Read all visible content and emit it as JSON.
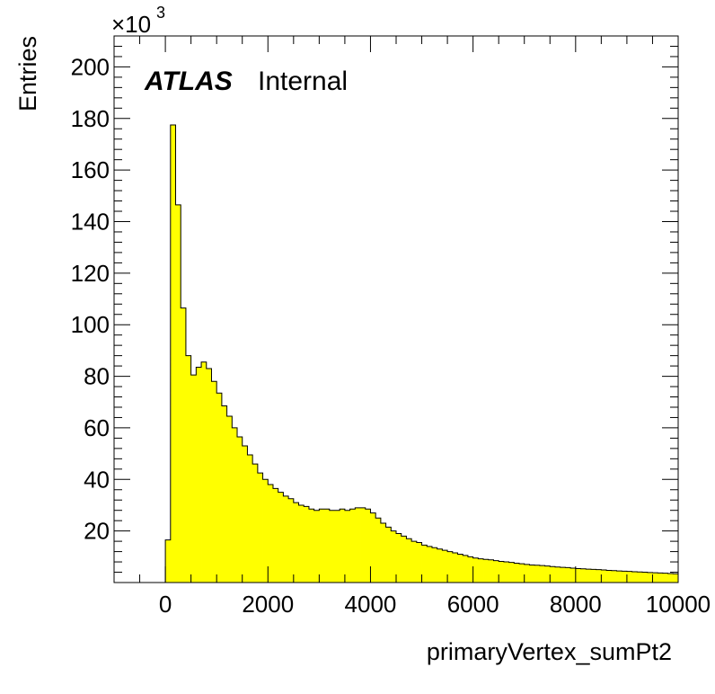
{
  "chart_data": {
    "type": "bar",
    "xlabel": "primaryVertex_sumPt2",
    "ylabel": "Entries",
    "y_scale_multiplier": "×10",
    "y_scale_exponent": "3",
    "label_bold": "ATLAS",
    "label_text": "Internal",
    "xlim": [
      -1000,
      10000
    ],
    "ylim": [
      0,
      212
    ],
    "x_ticks": [
      0,
      2000,
      4000,
      6000,
      8000,
      10000
    ],
    "x_tick_labels": [
      "0",
      "2000",
      "4000",
      "6000",
      "8000",
      "10000"
    ],
    "y_ticks": [
      20,
      40,
      60,
      80,
      100,
      120,
      140,
      160,
      180,
      200
    ],
    "y_tick_labels": [
      "20",
      "40",
      "60",
      "80",
      "100",
      "120",
      "140",
      "160",
      "180",
      "200"
    ],
    "bin_start": 0,
    "bin_width": 100,
    "values": [
      16.5,
      177.5,
      146.5,
      106.5,
      88,
      80.5,
      83.5,
      85.5,
      83,
      78,
      73.5,
      68.5,
      64.5,
      60,
      56.5,
      53,
      49.5,
      46,
      42.5,
      40,
      38,
      36.5,
      35,
      33.5,
      32.5,
      31,
      30,
      29.5,
      28.5,
      28,
      28.5,
      28.5,
      28,
      28,
      28.5,
      28,
      28.5,
      29,
      29,
      28.5,
      27,
      25,
      23,
      21.5,
      20,
      19,
      18,
      17,
      16,
      15.5,
      14.5,
      14,
      13.5,
      13,
      12.5,
      12,
      11.5,
      11,
      10.5,
      10,
      9.5,
      9.2,
      9,
      8.8,
      8.5,
      8.2,
      8,
      7.8,
      7.5,
      7.3,
      7,
      6.8,
      6.7,
      6.6,
      6.4,
      6.2,
      6,
      5.9,
      5.8,
      5.6,
      5.4,
      5.3,
      5.2,
      5.1,
      5,
      4.9,
      4.7,
      4.6,
      4.5,
      4.4,
      4.3,
      4.2,
      4.1,
      4,
      3.9,
      3.8,
      3.7,
      3.6,
      3.5,
      3.4
    ],
    "fill_color": "#ffff00",
    "line_color": "#000000",
    "grid": false
  }
}
